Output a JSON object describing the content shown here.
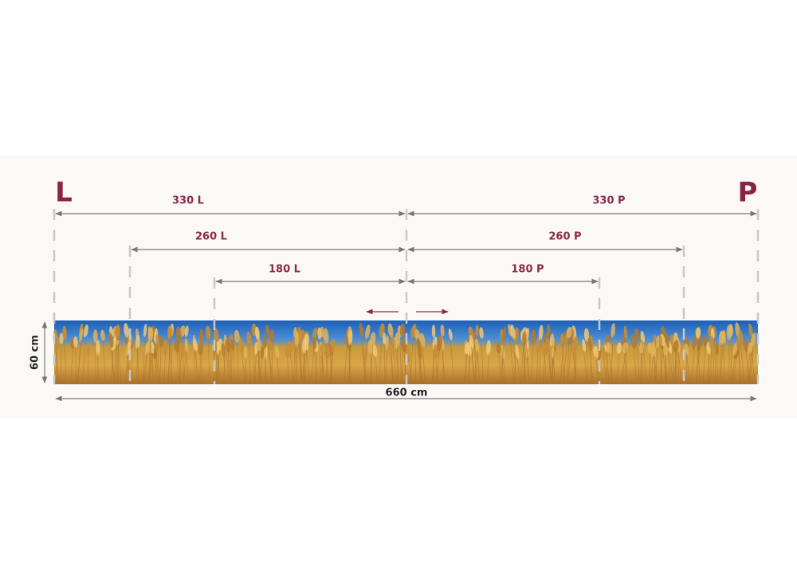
{
  "sides": {
    "left": "L",
    "right": "P"
  },
  "dimensions": [
    {
      "left": "330 L",
      "right": "330 P"
    },
    {
      "left": "260 L",
      "right": "260 P"
    },
    {
      "left": "180 L",
      "right": "180 P"
    }
  ],
  "height": "60 cm",
  "width": "660 cm"
}
